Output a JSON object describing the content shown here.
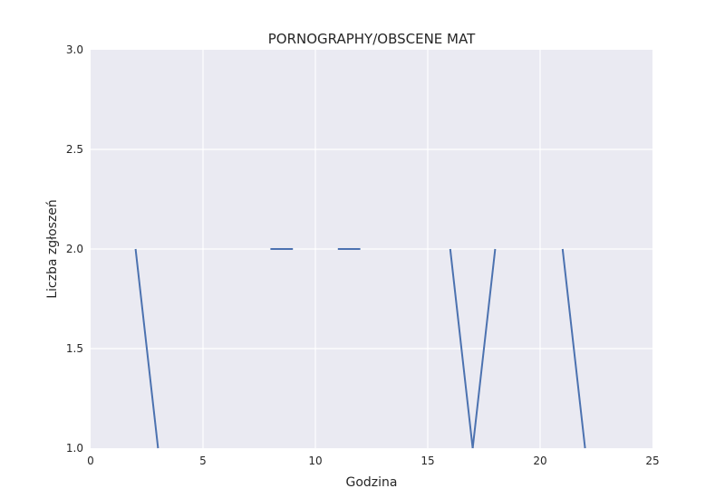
{
  "chart_data": {
    "type": "line",
    "title": "PORNOGRAPHY/OBSCENE MAT",
    "xlabel": "Godzina",
    "ylabel": "Liczba zgłoszeń",
    "xlim": [
      0,
      25
    ],
    "ylim": [
      1.0,
      3.0
    ],
    "xticks": [
      "0",
      "5",
      "10",
      "15",
      "20",
      "25"
    ],
    "yticks": [
      "1.0",
      "1.5",
      "2.0",
      "2.5",
      "3.0"
    ],
    "grid": true,
    "series": [
      {
        "color": "#4c72b0",
        "points": [
          [
            2,
            2
          ],
          [
            3,
            1
          ],
          [
            4,
            null
          ],
          [
            5,
            null
          ],
          [
            6,
            null
          ],
          [
            7,
            null
          ],
          [
            8,
            2
          ],
          [
            9,
            2
          ],
          [
            10,
            null
          ],
          [
            11,
            2
          ],
          [
            12,
            2
          ],
          [
            13,
            null
          ],
          [
            14,
            null
          ],
          [
            15,
            null
          ],
          [
            16,
            2
          ],
          [
            17,
            1
          ],
          [
            18,
            2
          ],
          [
            19,
            null
          ],
          [
            20,
            null
          ],
          [
            21,
            2
          ],
          [
            22,
            1
          ]
        ]
      }
    ]
  }
}
